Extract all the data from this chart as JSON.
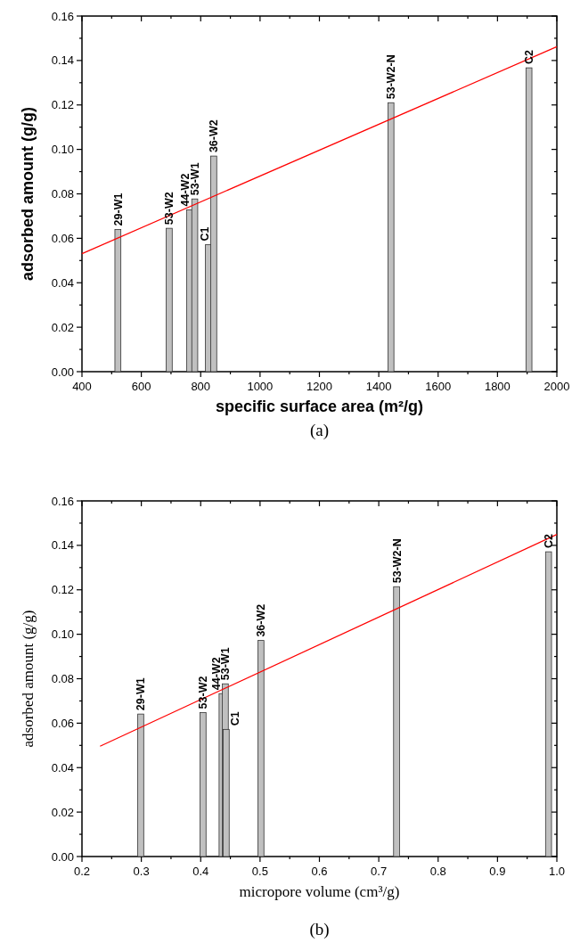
{
  "chart_data": [
    {
      "type": "bar",
      "title": "(a)",
      "xlabel": "specific surface area (m²/g)",
      "ylabel": "adsorbed amount (g/g)",
      "xlim": [
        400,
        2000
      ],
      "xticks": [
        400,
        {
          "value": 500,
          "label": null
        },
        600,
        {
          "value": 700,
          "label": null
        },
        800,
        {
          "value": 900,
          "label": null
        },
        1000,
        {
          "value": 1100,
          "label": null
        },
        1200,
        {
          "value": 1300,
          "label": null
        },
        1400,
        {
          "value": 1500,
          "label": null
        },
        1600,
        {
          "value": 1700,
          "label": null
        },
        1800,
        {
          "value": 1900,
          "label": null
        },
        2000
      ],
      "ylim": [
        0,
        0.16
      ],
      "yticks": [
        {
          "value": 0,
          "label": "0.00"
        },
        {
          "value": 0.01,
          "label": null
        },
        {
          "value": 0.02,
          "label": "0.02"
        },
        {
          "value": 0.03,
          "label": null
        },
        {
          "value": 0.04,
          "label": "0.04"
        },
        {
          "value": 0.05,
          "label": null
        },
        {
          "value": 0.06,
          "label": "0.06"
        },
        {
          "value": 0.07,
          "label": null
        },
        {
          "value": 0.08,
          "label": "0.08"
        },
        {
          "value": 0.09,
          "label": null
        },
        {
          "value": 0.1,
          "label": "0.10"
        },
        {
          "value": 0.11,
          "label": null
        },
        {
          "value": 0.12,
          "label": "0.12"
        },
        {
          "value": 0.13,
          "label": null
        },
        {
          "value": 0.14,
          "label": "0.14"
        },
        {
          "value": 0.15,
          "label": null
        },
        {
          "value": 0.16,
          "label": "0.16"
        }
      ],
      "series": [
        {
          "color": "#c0c0c0",
          "x": [
            521,
            694,
            763,
            780,
            826,
            844,
            1441,
            1906
          ],
          "values": [
            0.064,
            0.0645,
            0.0728,
            0.0777,
            0.0571,
            0.097,
            0.121,
            0.1367
          ]
        },
        {
          "type": "line",
          "color": "#ff0000",
          "x": [
            400,
            2000
          ],
          "values": [
            0.0531,
            0.1462
          ]
        }
      ],
      "annotations": [
        {
          "text": "29-W1",
          "x": 521,
          "y": 0.064
        },
        {
          "text": "53-W2",
          "x": 694,
          "y": 0.0645
        },
        {
          "text": "44-W2",
          "x": 763,
          "y": 0.0728
        },
        {
          "text": "53-W1",
          "x": 780,
          "y": 0.0777
        },
        {
          "text": "C1",
          "x": 826,
          "y": 0.0571
        },
        {
          "text": "36-W2",
          "x": 844,
          "y": 0.097
        },
        {
          "text": "53-W2-N",
          "x": 1441,
          "y": 0.121
        },
        {
          "text": "C2",
          "x": 1906,
          "y": 0.1367
        }
      ]
    },
    {
      "type": "bar",
      "title": "(b)",
      "xlabel": "micropore volume (cm³/g)",
      "ylabel": "adsorbed amount (g/g)",
      "xlim": [
        0.2,
        1.0
      ],
      "xticks": [
        0.2,
        {
          "value": 0.25,
          "label": null
        },
        0.3,
        {
          "value": 0.35,
          "label": null
        },
        0.4,
        {
          "value": 0.45,
          "label": null
        },
        0.5,
        {
          "value": 0.55,
          "label": null
        },
        0.6,
        {
          "value": 0.65,
          "label": null
        },
        0.7,
        {
          "value": 0.75,
          "label": null
        },
        0.8,
        {
          "value": 0.85,
          "label": null
        },
        0.9,
        {
          "value": 0.95,
          "label": null
        },
        {
          "value": 1.0,
          "label": "1.0"
        }
      ],
      "ylim": [
        0,
        0.16
      ],
      "yticks": [
        {
          "value": 0,
          "label": "0.00"
        },
        {
          "value": 0.01,
          "label": null
        },
        {
          "value": 0.02,
          "label": "0.02"
        },
        {
          "value": 0.03,
          "label": null
        },
        {
          "value": 0.04,
          "label": "0.04"
        },
        {
          "value": 0.05,
          "label": null
        },
        {
          "value": 0.06,
          "label": "0.06"
        },
        {
          "value": 0.07,
          "label": null
        },
        {
          "value": 0.08,
          "label": "0.08"
        },
        {
          "value": 0.09,
          "label": null
        },
        {
          "value": 0.1,
          "label": "0.10"
        },
        {
          "value": 0.11,
          "label": null
        },
        {
          "value": 0.12,
          "label": "0.12"
        },
        {
          "value": 0.13,
          "label": null
        },
        {
          "value": 0.14,
          "label": "0.14"
        },
        {
          "value": 0.15,
          "label": null
        },
        {
          "value": 0.16,
          "label": "0.16"
        }
      ],
      "series": [
        {
          "color": "#c0c0c0",
          "x": [
            0.299,
            0.404,
            0.436,
            0.4415,
            0.443,
            0.5015,
            0.73,
            0.986
          ],
          "values": [
            0.0641,
            0.0648,
            0.0733,
            0.0777,
            0.0572,
            0.0972,
            0.1214,
            0.1371
          ]
        },
        {
          "type": "line",
          "color": "#ff0000",
          "x": [
            0.2305,
            1.0
          ],
          "values": [
            0.0496,
            0.1449
          ]
        }
      ],
      "annotations": [
        {
          "text": "29-W1",
          "x": 0.299,
          "y": 0.0641
        },
        {
          "text": "53-W2",
          "x": 0.404,
          "y": 0.0648
        },
        {
          "text": "44-W2",
          "x": 0.436,
          "y": 0.0733
        },
        {
          "text": "53-W1",
          "x": 0.4415,
          "y": 0.0777
        },
        {
          "text": "C1",
          "x": 0.443,
          "y": 0.0572
        },
        {
          "text": "36-W2",
          "x": 0.5015,
          "y": 0.0972
        },
        {
          "text": "53-W2-N",
          "x": 0.73,
          "y": 0.1214
        },
        {
          "text": "C2",
          "x": 0.986,
          "y": 0.1371
        }
      ]
    }
  ]
}
